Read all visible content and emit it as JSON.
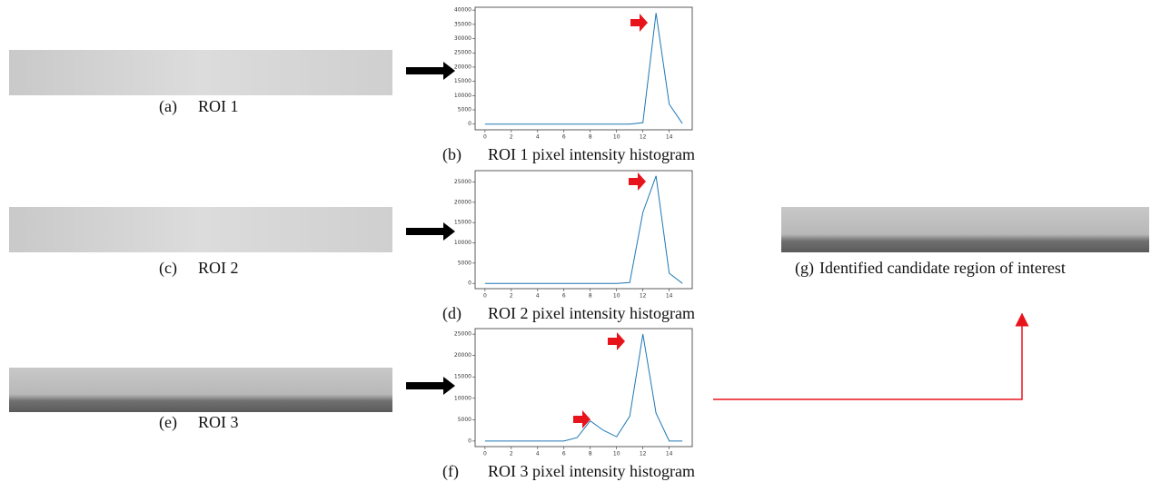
{
  "panels": [
    {
      "label": "(a)",
      "text": "ROI 1"
    },
    {
      "label": "(c)",
      "text": "ROI 2"
    },
    {
      "label": "(e)",
      "text": "ROI 3"
    },
    {
      "label": "(g)",
      "text": "Identified candidate region of interest"
    }
  ],
  "chart_data": [
    {
      "type": "line",
      "label": "(b)",
      "title": "ROI 1 pixel intensity histogram",
      "color": "#1f77b4",
      "x": [
        0,
        1,
        2,
        3,
        4,
        5,
        6,
        7,
        8,
        9,
        10,
        11,
        12,
        13,
        14,
        15
      ],
      "values": [
        0,
        0,
        0,
        0,
        0,
        0,
        0,
        0,
        0,
        0,
        0,
        0,
        500,
        39000,
        7000,
        200
      ],
      "xlim": [
        -0.75,
        15.75
      ],
      "ylim": [
        -2000,
        41000
      ],
      "xticks": [
        0,
        2,
        4,
        6,
        8,
        10,
        12,
        14
      ],
      "yticks": [
        0,
        5000,
        10000,
        15000,
        20000,
        25000,
        30000,
        35000,
        40000
      ]
    },
    {
      "type": "line",
      "label": "(d)",
      "title": "ROI 2 pixel intensity histogram",
      "color": "#1f77b4",
      "x": [
        0,
        1,
        2,
        3,
        4,
        5,
        6,
        7,
        8,
        9,
        10,
        11,
        12,
        13,
        14,
        15
      ],
      "values": [
        0,
        0,
        0,
        0,
        0,
        0,
        0,
        0,
        0,
        0,
        0,
        200,
        17500,
        26500,
        2500,
        0
      ],
      "xlim": [
        -0.75,
        15.75
      ],
      "ylim": [
        -1300,
        27800
      ],
      "xticks": [
        0,
        2,
        4,
        6,
        8,
        10,
        12,
        14
      ],
      "yticks": [
        0,
        5000,
        10000,
        15000,
        20000,
        25000
      ]
    },
    {
      "type": "line",
      "label": "(f)",
      "title": "ROI 3 pixel intensity histogram",
      "color": "#1f77b4",
      "x": [
        0,
        1,
        2,
        3,
        4,
        5,
        6,
        7,
        8,
        9,
        10,
        11,
        12,
        13,
        14,
        15
      ],
      "values": [
        0,
        0,
        0,
        0,
        0,
        0,
        0,
        800,
        4700,
        2500,
        1000,
        5800,
        25000,
        6500,
        0,
        0
      ],
      "xlim": [
        -0.75,
        15.75
      ],
      "ylim": [
        -1300,
        26300
      ],
      "xticks": [
        0,
        2,
        4,
        6,
        8,
        10,
        12,
        14
      ],
      "yticks": [
        0,
        5000,
        10000,
        15000,
        20000,
        25000
      ]
    }
  ]
}
